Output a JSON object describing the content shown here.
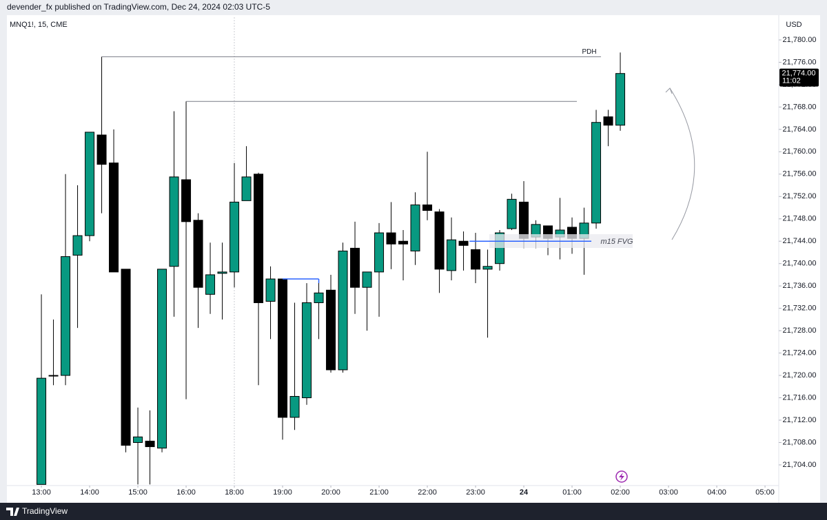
{
  "chart_data": {
    "type": "candlestick",
    "header": "devender_fx published on TradingView.com, Dec 24, 2024 02:03 UTC-5",
    "symbol": "MNQ1!, 15, CME",
    "currency": "USD",
    "brand": "TradingView",
    "up_color": "#089981",
    "down_color": "#000000",
    "open": [
      21700.5,
      21720,
      21720,
      21741.5,
      21745,
      21763,
      21758,
      21739,
      21708,
      21708.25,
      21707,
      21739.5,
      21755,
      21747.75,
      21734.5,
      21738.25,
      21738.5,
      21751.25,
      21756,
      21733.25,
      21737.25,
      21712.5,
      21716,
      21733,
      21735.25,
      21721,
      21742.75,
      21735.75,
      21738.5,
      21745.5,
      21744,
      21742.25,
      21750.5,
      21749.25,
      21738.75,
      21744,
      21742.5,
      21739,
      21740,
      21746.25,
      21751,
      21744.75,
      21746.75,
      21744.75,
      21746.5,
      21744.5,
      21747.25,
      21766.25,
      21764.75
    ],
    "high": [
      21734.5,
      21730,
      21756,
      21754,
      21763.5,
      21777,
      21764,
      21739,
      21714.25,
      21713.75,
      21739,
      21767.25,
      21769,
      21749,
      21743.75,
      21743.75,
      21758,
      21761,
      21756.25,
      21739.5,
      21737.25,
      21733,
      21736.5,
      21737.25,
      21738,
      21743.75,
      21747.5,
      21738.5,
      21747.25,
      21751,
      21746,
      21752.75,
      21760,
      21749.75,
      21748.25,
      21745.75,
      21745.5,
      21742.5,
      21746,
      21752.5,
      21754.75,
      21747.75,
      21746.75,
      21751.75,
      21748.25,
      21750,
      21767.5,
      21767.5,
      21777.75
    ],
    "low": [
      21700.5,
      21718.25,
      21718.25,
      21728.5,
      21744,
      21749,
      21738.5,
      21706.25,
      21700.5,
      21700.5,
      21706.25,
      21730.5,
      21715.75,
      21728.5,
      21731,
      21730,
      21735.75,
      21751.25,
      21718.25,
      21726.5,
      21708.5,
      21710.25,
      21714.75,
      21726.5,
      21720.5,
      21720.5,
      21731,
      21728,
      21730.5,
      21739,
      21737,
      21739.75,
      21747.75,
      21734.75,
      21737,
      21738.75,
      21736.5,
      21726.75,
      21738.75,
      21746,
      21742.75,
      21742.75,
      21741.5,
      21740.75,
      21741.75,
      21738,
      21746.25,
      21761,
      21763.75
    ],
    "close": [
      21719.5,
      21720,
      21741.25,
      21745,
      21763.5,
      21757.75,
      21738.5,
      21707.5,
      21709,
      21707.25,
      21739,
      21755.5,
      21747.5,
      21735.75,
      21738,
      21738.5,
      21751,
      21755.5,
      21733,
      21737.25,
      21712.5,
      21716.25,
      21733,
      21734.75,
      21721,
      21742.25,
      21735.75,
      21738.5,
      21745.5,
      21743.5,
      21743.5,
      21750.5,
      21749.5,
      21739,
      21744.25,
      21743.25,
      21739,
      21739.5,
      21745.5,
      21751.5,
      21744.5,
      21747,
      21744.5,
      21746,
      21744.5,
      21747.25,
      21765.25,
      21764.75,
      21774
    ],
    "xlim": [
      -2.86,
      61.14
    ],
    "xticks": [
      {
        "value": 0,
        "label": "13:00"
      },
      {
        "value": 4,
        "label": "14:00"
      },
      {
        "value": 8,
        "label": "15:00"
      },
      {
        "value": 12,
        "label": "16:00"
      },
      {
        "value": 16,
        "label": "18:00"
      },
      {
        "value": 20,
        "label": "19:00"
      },
      {
        "value": 24,
        "label": "20:00"
      },
      {
        "value": 28,
        "label": "21:00"
      },
      {
        "value": 32,
        "label": "22:00"
      },
      {
        "value": 36,
        "label": "23:00"
      },
      {
        "value": 40,
        "label": "24"
      },
      {
        "value": 44,
        "label": "01:00"
      },
      {
        "value": 48,
        "label": "02:00"
      },
      {
        "value": 52,
        "label": "03:00"
      },
      {
        "value": 56,
        "label": "04:00"
      },
      {
        "value": 60,
        "label": "05:00"
      }
    ],
    "ylim": [
      21700.3,
      21784
    ],
    "yticks": [
      {
        "value": 21704,
        "label": "21,704.00"
      },
      {
        "value": 21708,
        "label": "21,708.00"
      },
      {
        "value": 21712,
        "label": "21,712.00"
      },
      {
        "value": 21716,
        "label": "21,716.00"
      },
      {
        "value": 21720,
        "label": "21,720.00"
      },
      {
        "value": 21724,
        "label": "21,724.00"
      },
      {
        "value": 21728,
        "label": "21,728.00"
      },
      {
        "value": 21732,
        "label": "21,732.00"
      },
      {
        "value": 21736,
        "label": "21,736.00"
      },
      {
        "value": 21740,
        "label": "21,740.00"
      },
      {
        "value": 21744,
        "label": "21,744.00"
      },
      {
        "value": 21748,
        "label": "21,748.00"
      },
      {
        "value": 21752,
        "label": "21,752.00"
      },
      {
        "value": 21756,
        "label": "21,756.00"
      },
      {
        "value": 21760,
        "label": "21,760.00"
      },
      {
        "value": 21764,
        "label": "21,764.00"
      },
      {
        "value": 21768,
        "label": "21,768.00"
      },
      {
        "value": 21772,
        "label": "21,772.00"
      },
      {
        "value": 21776,
        "label": "21,776.00"
      },
      {
        "value": 21780,
        "label": "21,780.00"
      }
    ],
    "last_price": {
      "value": 21774,
      "label": "21,774.00"
    },
    "countdown": "11:02",
    "levels": [
      {
        "label": "PDH",
        "value": 21777,
        "color": "#787b86"
      },
      {
        "value": 21769,
        "color": "#787b86"
      },
      {
        "value": 21737.25,
        "color": "#2962ff"
      },
      {
        "label": "m15 FVG",
        "value": 21744,
        "color": "#2962ff"
      }
    ]
  }
}
